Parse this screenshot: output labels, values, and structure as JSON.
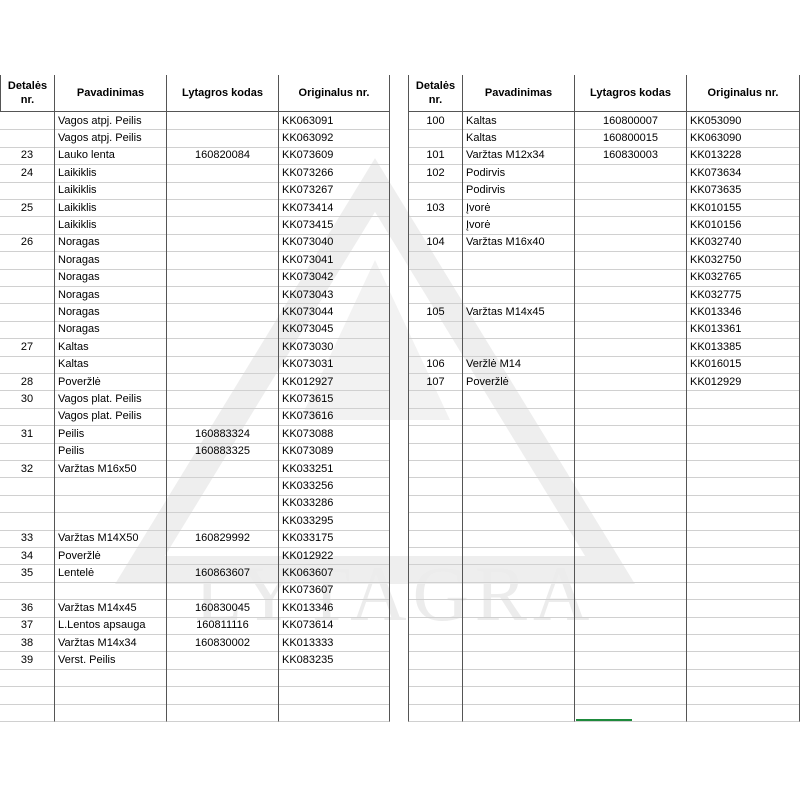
{
  "watermark": "LYTAGRA",
  "tables": [
    {
      "header": [
        "Detalės nr.",
        "Pavadinimas",
        "Lytagros kodas",
        "Originalus nr."
      ],
      "rows": [
        [
          null,
          "Vagos atpj. Peilis",
          null,
          "KK063091"
        ],
        [
          null,
          "Vagos atpj. Peilis",
          null,
          "KK063092"
        ],
        [
          23,
          "Lauko lenta",
          160820084,
          "KK073609"
        ],
        [
          24,
          "Laikiklis",
          null,
          "KK073266"
        ],
        [
          null,
          "Laikiklis",
          null,
          "KK073267"
        ],
        [
          25,
          "Laikiklis",
          null,
          "KK073414"
        ],
        [
          null,
          "Laikiklis",
          null,
          "KK073415"
        ],
        [
          26,
          "Noragas",
          null,
          "KK073040"
        ],
        [
          null,
          "Noragas",
          null,
          "KK073041"
        ],
        [
          null,
          "Noragas",
          null,
          "KK073042"
        ],
        [
          null,
          "Noragas",
          null,
          "KK073043"
        ],
        [
          null,
          "Noragas",
          null,
          "KK073044"
        ],
        [
          null,
          "Noragas",
          null,
          "KK073045"
        ],
        [
          27,
          "Kaltas",
          null,
          "KK073030"
        ],
        [
          null,
          "Kaltas",
          null,
          "KK073031"
        ],
        [
          28,
          "Poveržlė",
          null,
          "KK012927"
        ],
        [
          30,
          "Vagos plat. Peilis",
          null,
          "KK073615"
        ],
        [
          null,
          "Vagos plat. Peilis",
          null,
          "KK073616"
        ],
        [
          31,
          "Peilis",
          160883324,
          "KK073088"
        ],
        [
          null,
          "Peilis",
          160883325,
          "KK073089"
        ],
        [
          32,
          "Varžtas M16x50",
          null,
          "KK033251"
        ],
        [
          null,
          null,
          null,
          "KK033256"
        ],
        [
          null,
          null,
          null,
          "KK033286"
        ],
        [
          null,
          null,
          null,
          "KK033295"
        ],
        [
          33,
          "Varžtas M14X50",
          160829992,
          "KK033175"
        ],
        [
          34,
          "Poveržlė",
          null,
          "KK012922"
        ],
        [
          35,
          "Lentelė",
          160863607,
          "KK063607"
        ],
        [
          null,
          null,
          null,
          "KK073607"
        ],
        [
          36,
          "Varžtas M14x45",
          160830045,
          "KK013346"
        ],
        [
          37,
          "L.Lentos apsauga",
          160811116,
          "KK073614"
        ],
        [
          38,
          "Varžtas M14x34",
          160830002,
          "KK013333"
        ],
        [
          39,
          "Verst. Peilis",
          null,
          "KK083235"
        ],
        [
          null,
          null,
          null,
          null
        ],
        [
          null,
          null,
          null,
          null
        ],
        [
          null,
          null,
          null,
          null
        ]
      ]
    },
    {
      "header": [
        "Detalės nr.",
        "Pavadinimas",
        "Lytagros kodas",
        "Originalus nr."
      ],
      "rows": [
        [
          100,
          "Kaltas",
          160800007,
          "KK053090"
        ],
        [
          null,
          "Kaltas",
          160800015,
          "KK063090"
        ],
        [
          101,
          "Varžtas M12x34",
          160830003,
          "KK013228"
        ],
        [
          102,
          "Podirvis",
          null,
          "KK073634"
        ],
        [
          null,
          "Podirvis",
          null,
          "KK073635"
        ],
        [
          103,
          "Įvorė",
          null,
          "KK010155"
        ],
        [
          null,
          "Įvorė",
          null,
          "KK010156"
        ],
        [
          104,
          "Varžtas M16x40",
          null,
          "KK032740"
        ],
        [
          null,
          null,
          null,
          "KK032750"
        ],
        [
          null,
          null,
          null,
          "KK032765"
        ],
        [
          null,
          null,
          null,
          "KK032775"
        ],
        [
          105,
          "Varžtas M14x45",
          null,
          "KK013346"
        ],
        [
          null,
          null,
          null,
          "KK013361"
        ],
        [
          null,
          null,
          null,
          "KK013385"
        ],
        [
          106,
          "Veržlė M14",
          null,
          "KK016015"
        ],
        [
          107,
          "Poveržlė",
          null,
          "KK012929"
        ],
        [
          null,
          null,
          null,
          null
        ],
        [
          null,
          null,
          null,
          null
        ],
        [
          null,
          null,
          null,
          null
        ],
        [
          null,
          null,
          null,
          null
        ],
        [
          null,
          null,
          null,
          null
        ],
        [
          null,
          null,
          null,
          null
        ],
        [
          null,
          null,
          null,
          null
        ],
        [
          null,
          null,
          null,
          null
        ],
        [
          null,
          null,
          null,
          null
        ],
        [
          null,
          null,
          null,
          null
        ],
        [
          null,
          null,
          null,
          null
        ],
        [
          null,
          null,
          null,
          null
        ],
        [
          null,
          null,
          null,
          null
        ],
        [
          null,
          null,
          null,
          null
        ],
        [
          null,
          null,
          null,
          null
        ],
        [
          null,
          null,
          null,
          null
        ],
        [
          null,
          null,
          null,
          null
        ],
        [
          null,
          null,
          null,
          null
        ],
        [
          null,
          null,
          null,
          null
        ]
      ]
    }
  ]
}
